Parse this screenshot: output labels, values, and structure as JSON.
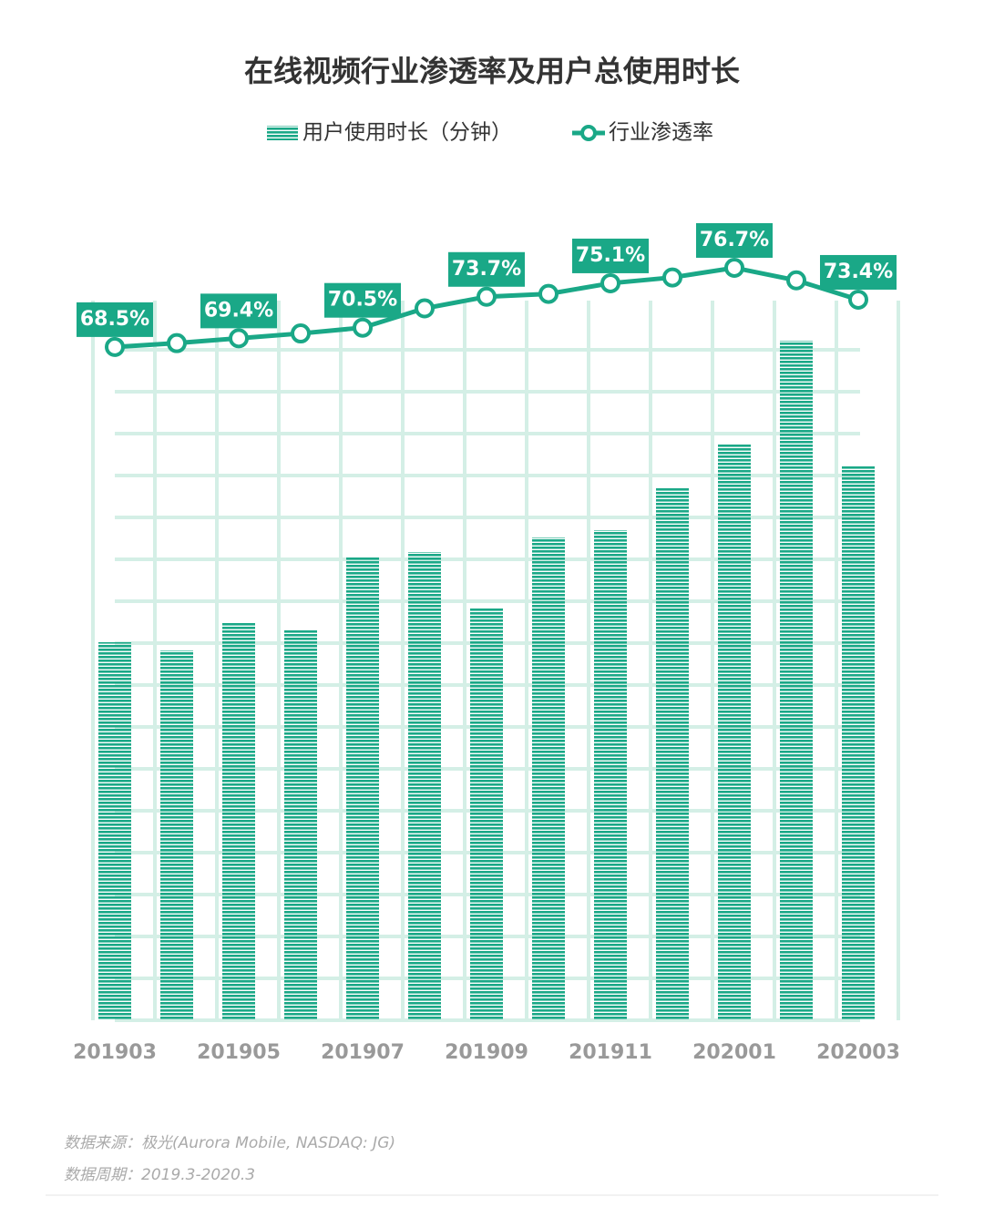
{
  "chart_data": {
    "type": "bar",
    "title": "在线视频行业渗透率及用户总使用时长",
    "categories": [
      "201903",
      null,
      "201905",
      null,
      "201907",
      null,
      "201909",
      null,
      "201911",
      null,
      "202001",
      null,
      "202003"
    ],
    "series": [
      {
        "name": "用户使用时长（分钟）",
        "type": "bar",
        "color": "#1aa887",
        "values": [
          415,
          406,
          436,
          429,
          508,
          514,
          453,
          530,
          538,
          584,
          633,
          746,
          608
        ]
      },
      {
        "name": "行业渗透率",
        "type": "line",
        "axis": "y2",
        "color": "#1aa887",
        "values": [
          68.5,
          68.9,
          69.4,
          69.9,
          70.5,
          72.5,
          73.7,
          74.0,
          75.1,
          75.7,
          76.7,
          75.4,
          73.4
        ],
        "value_labels": [
          "68.5%",
          null,
          "69.4%",
          null,
          "70.5%",
          null,
          "73.7%",
          null,
          "75.1%",
          null,
          "76.7%",
          null,
          "73.4%"
        ]
      }
    ],
    "ylim": [
      0,
      780
    ],
    "y2lim": [
      60,
      80
    ],
    "source": "数据来源：极光(Aurora Mobile, NASDAQ: JG)",
    "period": "数据周期：2019.3-2020.3"
  }
}
